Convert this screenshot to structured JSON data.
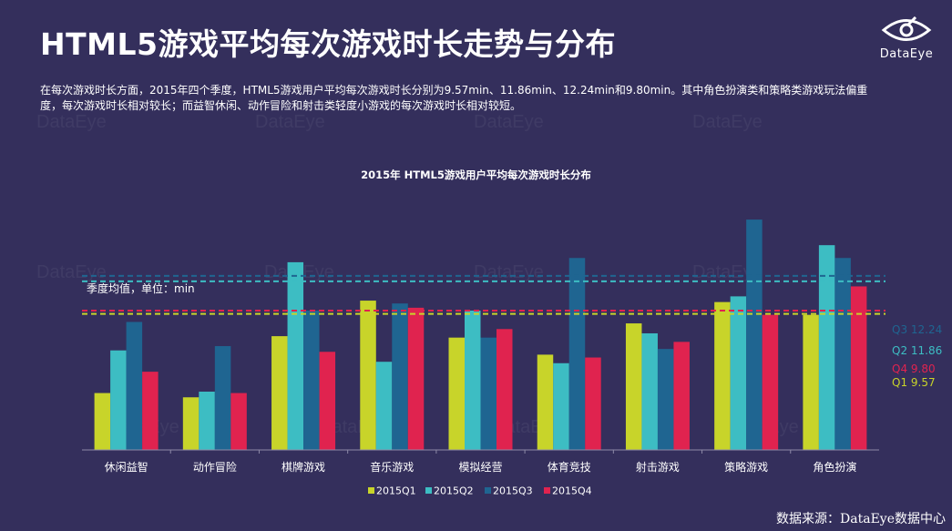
{
  "page": {
    "title": "HTML5游戏平均每次游戏时长走势与分布",
    "description": "在每次游戏时长方面，2015年四个季度，HTML5游戏用户平均每次游戏时长分别为9.57min、11.86min、12.24min和9.80min。其中角色扮演类和策略类游戏玩法偏重度，每次游戏时长相对较长；而益智休闲、动作冒险和射击类轻度小游戏的每次游戏时长相对较短。",
    "logo_text": "DataEye",
    "source": "数据来源：DataEye数据中心",
    "watermark": "DataEye"
  },
  "chart_data": {
    "type": "bar",
    "title": "2015年 HTML5游戏用户平均每次游戏时长分布",
    "ylabel": "季度均值，单位：min",
    "ylim": [
      0,
      15.5
    ],
    "categories": [
      "休闲益智",
      "动作冒险",
      "棋牌游戏",
      "音乐游戏",
      "模拟经营",
      "体育竞技",
      "射击游戏",
      "策略游戏",
      "角色扮演"
    ],
    "series": [
      {
        "name": "2015Q1",
        "color": "#c8d42a",
        "values": [
          4.0,
          3.7,
          8.0,
          10.5,
          7.9,
          6.7,
          8.9,
          10.4,
          9.5
        ]
      },
      {
        "name": "2015Q2",
        "color": "#3dbdc3",
        "values": [
          7.0,
          4.1,
          13.2,
          6.2,
          9.8,
          6.1,
          8.2,
          10.8,
          14.4
        ]
      },
      {
        "name": "2015Q3",
        "color": "#1f6591",
        "values": [
          9.0,
          7.3,
          9.8,
          10.3,
          7.9,
          13.5,
          7.1,
          16.2,
          13.5
        ]
      },
      {
        "name": "2015Q4",
        "color": "#e0234f",
        "values": [
          5.5,
          4.0,
          6.9,
          10.0,
          8.5,
          6.5,
          7.6,
          9.5,
          11.5
        ]
      }
    ],
    "reference_lines": [
      {
        "label": "Q3 12.24",
        "value": 12.24,
        "color": "#1f6591"
      },
      {
        "label": "Q2 11.86",
        "value": 11.86,
        "color": "#3dbdc3"
      },
      {
        "label": "Q4 9.80",
        "value": 9.8,
        "color": "#e0234f"
      },
      {
        "label": "Q1 9.57",
        "value": 9.57,
        "color": "#c8d42a"
      }
    ],
    "grid": false,
    "legend": "bottom"
  }
}
